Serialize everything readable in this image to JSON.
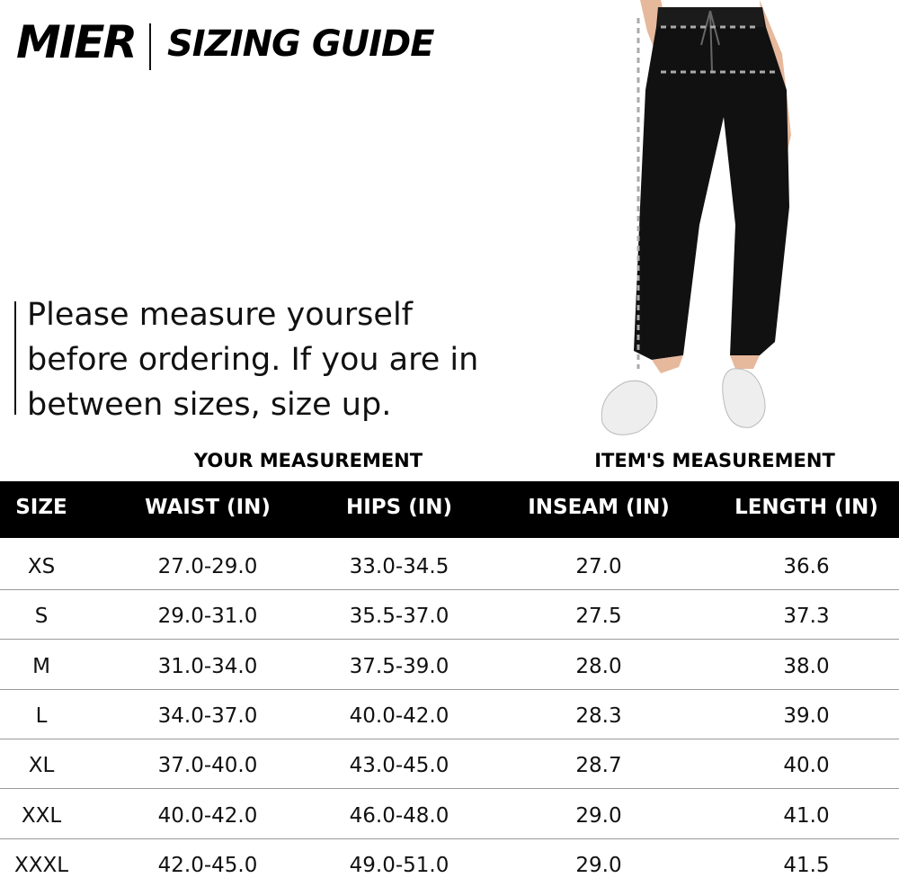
{
  "header": {
    "brand": "MIER",
    "title": "SIZING GUIDE"
  },
  "note": [
    "Please measure yourself",
    "before ordering. If you are in",
    "between sizes, size up."
  ],
  "groups": {
    "your": "YOUR MEASUREMENT",
    "item": "ITEM'S MEASUREMENT"
  },
  "table": {
    "columns": [
      "SIZE",
      "WAIST (IN)",
      "HIPS (IN)",
      "INSEAM (IN)",
      "LENGTH (IN)"
    ],
    "rows": [
      [
        "XS",
        "27.0-29.0",
        "33.0-34.5",
        "27.0",
        "36.6"
      ],
      [
        "S",
        "29.0-31.0",
        "35.5-37.0",
        "27.5",
        "37.3"
      ],
      [
        "M",
        "31.0-34.0",
        "37.5-39.0",
        "28.0",
        "38.0"
      ],
      [
        "L",
        "34.0-37.0",
        "40.0-42.0",
        "28.3",
        "39.0"
      ],
      [
        "XL",
        "37.0-40.0",
        "43.0-45.0",
        "28.7",
        "40.0"
      ],
      [
        "XXL",
        "40.0-42.0",
        "46.0-48.0",
        "29.0",
        "41.0"
      ],
      [
        "XXXL",
        "42.0-45.0",
        "49.0-51.0",
        "29.0",
        "41.5"
      ]
    ]
  }
}
